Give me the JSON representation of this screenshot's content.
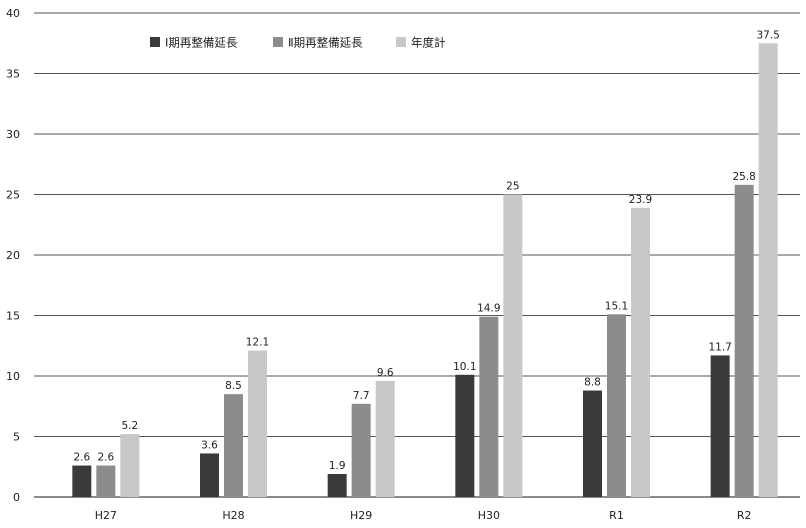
{
  "chart_data": {
    "type": "bar",
    "categories": [
      "H27",
      "H28",
      "H29",
      "H30",
      "R1",
      "R2"
    ],
    "series": [
      {
        "name": "Ⅰ期再整備延長",
        "values": [
          2.6,
          3.6,
          1.9,
          10.1,
          8.8,
          11.7
        ],
        "color": "#3c3a38"
      },
      {
        "name": "Ⅱ期再整備延長",
        "values": [
          2.6,
          8.5,
          7.7,
          14.9,
          15.1,
          25.8
        ],
        "color": "#8c8c8c"
      },
      {
        "name": "年度計",
        "values": [
          5.2,
          12.1,
          9.6,
          25,
          23.9,
          37.5
        ],
        "color": "#c8c8c8"
      }
    ],
    "ylim": [
      0,
      40
    ],
    "yticks": [
      0,
      5,
      10,
      15,
      20,
      25,
      30,
      35,
      40
    ],
    "grid": true,
    "legend": "top-left",
    "title": "",
    "xlabel": "",
    "ylabel": ""
  }
}
